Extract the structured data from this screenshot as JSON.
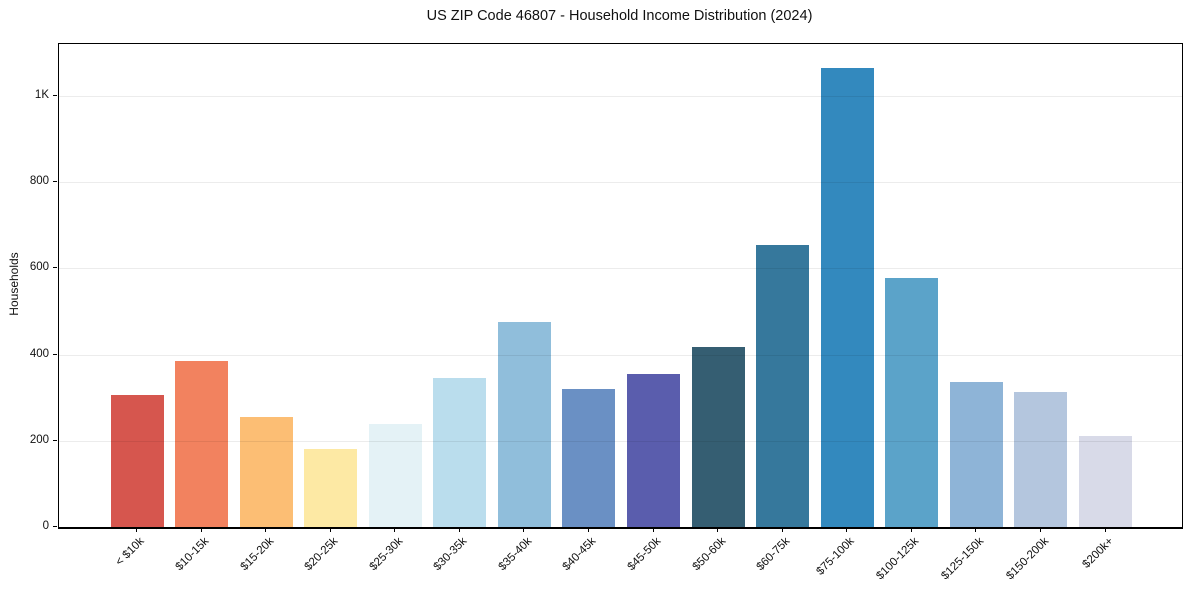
{
  "chart_data": {
    "type": "bar",
    "title": "US ZIP Code 46807 - Household Income Distribution (2024)",
    "xlabel": "",
    "ylabel": "Households",
    "ylim": [
      0,
      1120
    ],
    "grid": true,
    "legend": "none",
    "yticks": [
      {
        "value": 0,
        "label": "0"
      },
      {
        "value": 200,
        "label": "200"
      },
      {
        "value": 400,
        "label": "400"
      },
      {
        "value": 600,
        "label": "600"
      },
      {
        "value": 800,
        "label": "800"
      },
      {
        "value": 1000,
        "label": "1K"
      }
    ],
    "categories": [
      "< $10k",
      "$10-15k",
      "$15-20k",
      "$20-25k",
      "$25-30k",
      "$30-35k",
      "$35-40k",
      "$40-45k",
      "$45-50k",
      "$50-60k",
      "$60-75k",
      "$75-100k",
      "$100-125k",
      "$125-150k",
      "$150-200k",
      "$200k+"
    ],
    "values": [
      307,
      385,
      255,
      180,
      239,
      346,
      476,
      319,
      355,
      418,
      655,
      1065,
      578,
      336,
      313,
      212
    ],
    "bar_colors": [
      "#d6564e",
      "#f2825f",
      "#fcbe74",
      "#fde9a4",
      "#e4f2f6",
      "#badded",
      "#90bedb",
      "#6a90c4",
      "#5a5dad",
      "#355e72",
      "#36789c",
      "#3389be",
      "#5ba3c9",
      "#8eb4d7",
      "#b4c6de",
      "#d8dae8"
    ]
  }
}
